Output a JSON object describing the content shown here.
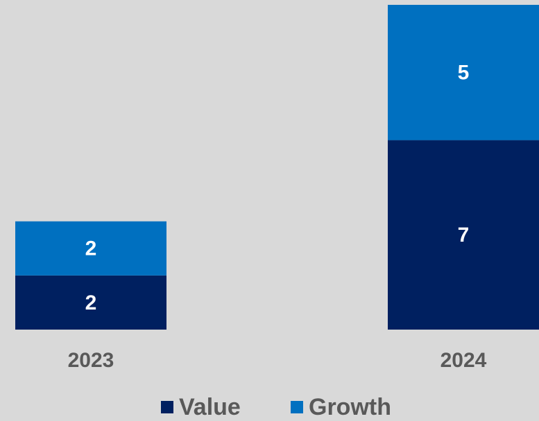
{
  "chart_data": {
    "type": "stacked_bar",
    "categories": [
      "2023",
      "2024"
    ],
    "series": [
      {
        "name": "Value",
        "color": "#002060",
        "values": [
          2,
          7
        ]
      },
      {
        "name": "Growth",
        "color": "#0070c0",
        "values": [
          2,
          5
        ]
      }
    ],
    "legend": "bottom"
  }
}
